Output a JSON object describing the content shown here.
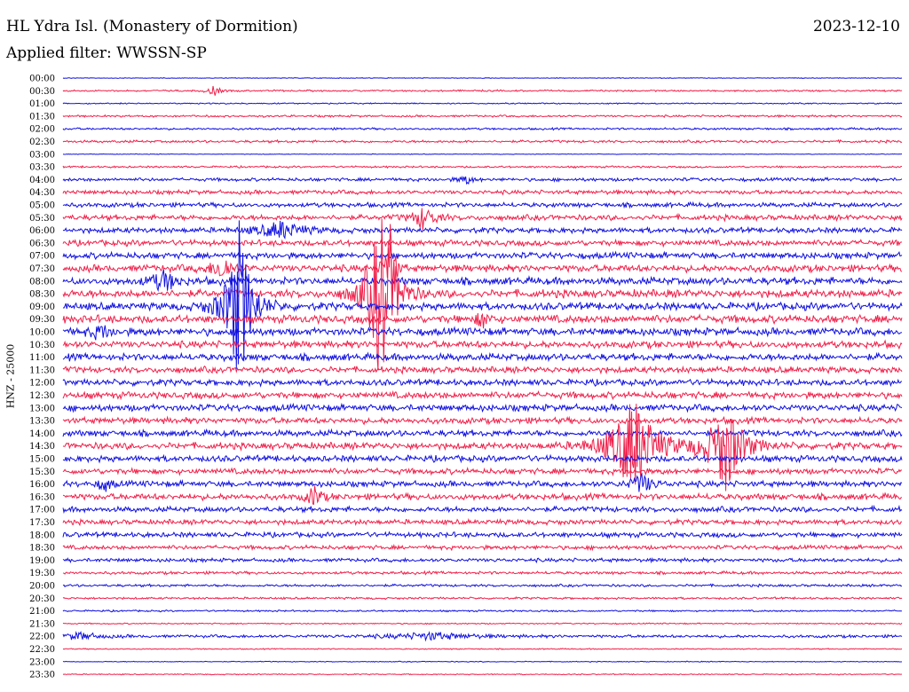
{
  "header": {
    "station": "HL Ydra Isl. (Monastery of Dormition)",
    "date": "2023-12-10",
    "filter": "Applied filter: WWSSN-SP"
  },
  "axis": {
    "ylabel": "HNZ - 25000"
  },
  "colors": {
    "blue": "#1010e0",
    "red": "#f0204a"
  },
  "chart_data": {
    "type": "line",
    "title": "HL Ydra Isl. (Monastery of Dormition)",
    "subtitle": "Applied filter: WWSSN-SP",
    "ylabel": "HNZ - 25000",
    "rows": [
      "00:00",
      "00:30",
      "01:00",
      "01:30",
      "02:00",
      "02:30",
      "03:00",
      "03:30",
      "04:00",
      "04:30",
      "05:00",
      "05:30",
      "06:00",
      "06:30",
      "07:00",
      "07:30",
      "08:00",
      "08:30",
      "09:00",
      "09:30",
      "10:00",
      "10:30",
      "11:00",
      "11:30",
      "12:00",
      "12:30",
      "13:00",
      "13:30",
      "14:00",
      "14:30",
      "15:00",
      "15:30",
      "16:00",
      "16:30",
      "17:00",
      "17:30",
      "18:00",
      "18:30",
      "19:00",
      "19:30",
      "20:00",
      "20:30",
      "21:00",
      "21:30",
      "22:00",
      "22:30",
      "23:00",
      "23:30"
    ],
    "noise_level": [
      0.3,
      0.8,
      0.6,
      1.0,
      1.0,
      1.2,
      0.3,
      0.9,
      1.6,
      2.0,
      2.2,
      2.6,
      2.6,
      2.8,
      3.0,
      3.4,
      3.6,
      3.8,
      3.6,
      3.8,
      3.6,
      3.4,
      3.4,
      3.0,
      3.0,
      3.2,
      3.2,
      3.0,
      3.0,
      3.2,
      3.0,
      2.8,
      2.8,
      3.0,
      2.6,
      2.4,
      2.4,
      2.0,
      1.8,
      1.4,
      1.2,
      1.0,
      0.8,
      0.6,
      1.4,
      0.5,
      0.4,
      0.5
    ],
    "events": [
      {
        "row": 1,
        "pos": 0.18,
        "amp": 6,
        "width": 0.006
      },
      {
        "row": 8,
        "pos": 0.48,
        "amp": 6,
        "width": 0.006
      },
      {
        "row": 11,
        "pos": 0.43,
        "amp": 14,
        "width": 0.01
      },
      {
        "row": 12,
        "pos": 0.26,
        "amp": 10,
        "width": 0.02
      },
      {
        "row": 15,
        "pos": 0.19,
        "amp": 14,
        "width": 0.01
      },
      {
        "row": 15,
        "pos": 0.39,
        "amp": 70,
        "width": 0.004
      },
      {
        "row": 16,
        "pos": 0.12,
        "amp": 12,
        "width": 0.012
      },
      {
        "row": 17,
        "pos": 0.38,
        "amp": 120,
        "width": 0.012
      },
      {
        "row": 18,
        "pos": 0.21,
        "amp": 95,
        "width": 0.012
      },
      {
        "row": 19,
        "pos": 0.5,
        "amp": 10,
        "width": 0.006
      },
      {
        "row": 20,
        "pos": 0.045,
        "amp": 8,
        "width": 0.01
      },
      {
        "row": 29,
        "pos": 0.68,
        "amp": 60,
        "width": 0.02
      },
      {
        "row": 29,
        "pos": 0.79,
        "amp": 55,
        "width": 0.016
      },
      {
        "row": 32,
        "pos": 0.05,
        "amp": 8,
        "width": 0.006
      },
      {
        "row": 32,
        "pos": 0.69,
        "amp": 12,
        "width": 0.01
      },
      {
        "row": 33,
        "pos": 0.3,
        "amp": 14,
        "width": 0.006
      },
      {
        "row": 44,
        "pos": 0.02,
        "amp": 4,
        "width": 0.02
      },
      {
        "row": 44,
        "pos": 0.44,
        "amp": 4,
        "width": 0.04
      }
    ]
  }
}
